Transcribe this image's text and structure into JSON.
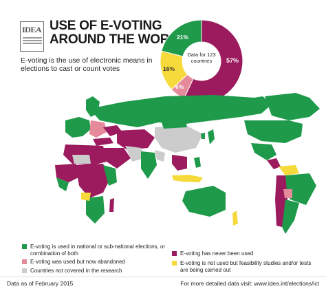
{
  "header": {
    "logo_text": "IDEA",
    "title_line1": "USE OF E-VOTING",
    "title_line2": "AROUND THE WORLD",
    "subtitle": "E-voting is the use of electronic means in elections to cast or count votes"
  },
  "donut": {
    "center_label": "Data for 123 countries",
    "segments": [
      {
        "label": "57%",
        "value": 57,
        "color": "#9b1b5e"
      },
      {
        "label": "6%",
        "value": 6,
        "color": "#e48a9a"
      },
      {
        "label": "16%",
        "value": 16,
        "color": "#f6d93a"
      },
      {
        "label": "21%",
        "value": 21,
        "color": "#1f9a4b"
      }
    ]
  },
  "legend": {
    "items": [
      {
        "text": "E-voting is used in national or sub-national elections, or combination of both",
        "color": "#1f9a4b"
      },
      {
        "text": "E-voting was used but now abandoned",
        "color": "#e48a9a"
      },
      {
        "text": "Countries not covered in the research",
        "color": "#cccccc"
      },
      {
        "text": "E-voting has never been used",
        "color": "#9b1b5e"
      },
      {
        "text": "E-voting is not used but feasibility studies and/or tests are being carried out",
        "color": "#f6d93a"
      }
    ]
  },
  "footer": {
    "left": "Data as of February 2015",
    "right": "For more detailed data visit: www.idea.int/elections/ict"
  },
  "colors": {
    "used": "#1f9a4b",
    "abandoned": "#e48a9a",
    "not_covered": "#cccccc",
    "never": "#9b1b5e",
    "feasibility": "#f6d93a"
  }
}
